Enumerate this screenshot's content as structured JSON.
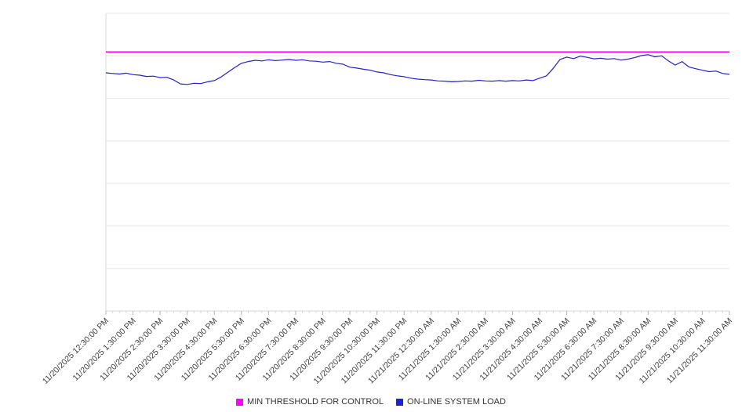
{
  "chart_data": {
    "type": "line",
    "title": "",
    "xlabel": "",
    "ylabel": "",
    "ylim": [
      0,
      100
    ],
    "y_tick_labels_visible": false,
    "grid": true,
    "legend_position": "bottom-center",
    "x_tick_labels": [
      "11/20/2025 12:30:00 PM",
      "11/20/2025 1:30:00 PM",
      "11/20/2025 2:30:00 PM",
      "11/20/2025 3:30:00 PM",
      "11/20/2025 4:30:00 PM",
      "11/20/2025 5:30:00 PM",
      "11/20/2025 6:30:00 PM",
      "11/20/2025 7:30:00 PM",
      "11/20/2025 8:30:00 PM",
      "11/20/2025 9:30:00 PM",
      "11/20/2025 10:30:00 PM",
      "11/20/2025 11:30:00 PM",
      "11/21/2025 12:30:00 AM",
      "11/21/2025 1:30:00 AM",
      "11/21/2025 2:30:00 AM",
      "11/21/2025 3:30:00 AM",
      "11/21/2025 4:30:00 AM",
      "11/21/2025 5:30:00 AM",
      "11/21/2025 6:30:00 AM",
      "11/21/2025 7:30:00 AM",
      "11/21/2025 8:30:00 AM",
      "11/21/2025 9:30:00 AM",
      "11/21/2025 10:30:00 AM",
      "11/21/2025 11:30:00 AM"
    ],
    "series": [
      {
        "name": "MIN THRESHOLD FOR CONTROL",
        "type": "constant-line",
        "color": "#ff00ff",
        "value": 87
      },
      {
        "name": "ON-LINE SYSTEM LOAD",
        "type": "line",
        "color": "#2222cc",
        "values": [
          80.0,
          79.8,
          79.6,
          79.9,
          79.4,
          79.2,
          78.8,
          78.9,
          78.4,
          78.5,
          77.6,
          76.3,
          76.1,
          76.5,
          76.4,
          77.0,
          77.4,
          78.6,
          80.2,
          81.8,
          83.2,
          83.8,
          84.2,
          84.0,
          84.4,
          84.1,
          84.3,
          84.5,
          84.2,
          84.4,
          84.0,
          83.9,
          83.6,
          83.8,
          83.2,
          82.9,
          81.9,
          81.6,
          81.2,
          80.9,
          80.3,
          80.0,
          79.4,
          79.0,
          78.7,
          78.2,
          77.9,
          77.7,
          77.6,
          77.3,
          77.2,
          77.0,
          77.1,
          77.3,
          77.2,
          77.5,
          77.3,
          77.2,
          77.4,
          77.2,
          77.4,
          77.3,
          77.6,
          77.4,
          78.2,
          79.0,
          81.5,
          84.5,
          85.3,
          84.8,
          85.6,
          85.2,
          84.7,
          84.9,
          84.6,
          84.8,
          84.3,
          84.6,
          85.1,
          85.8,
          86.1,
          85.4,
          85.7,
          84.0,
          82.6,
          83.8,
          82.0,
          81.4,
          80.9,
          80.4,
          80.6,
          79.8,
          79.5
        ]
      }
    ]
  }
}
